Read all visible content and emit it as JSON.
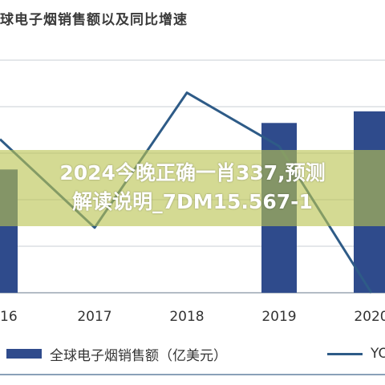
{
  "overlay": {
    "line1": "2024今晚正确一肖337,预测",
    "line2": "解读说明_7DM15.567-1"
  },
  "chart_data": {
    "type": "bar",
    "title": "球电子烟销售额以及同比增速",
    "categories": [
      "16",
      "2017",
      "2018",
      "2019",
      "2020"
    ],
    "series": [
      {
        "name": "全球电子烟销售额（亿美元）",
        "type": "bar",
        "color": "#2f4b8c",
        "values": [
          265,
          0,
          0,
          365,
          390
        ]
      },
      {
        "name": "YO",
        "type": "line",
        "color": "#2e5b87",
        "values": [
          330,
          140,
          430,
          315,
          0
        ]
      }
    ],
    "ylim": [
      0,
      500
    ],
    "grid": true,
    "legend": "bottom"
  }
}
